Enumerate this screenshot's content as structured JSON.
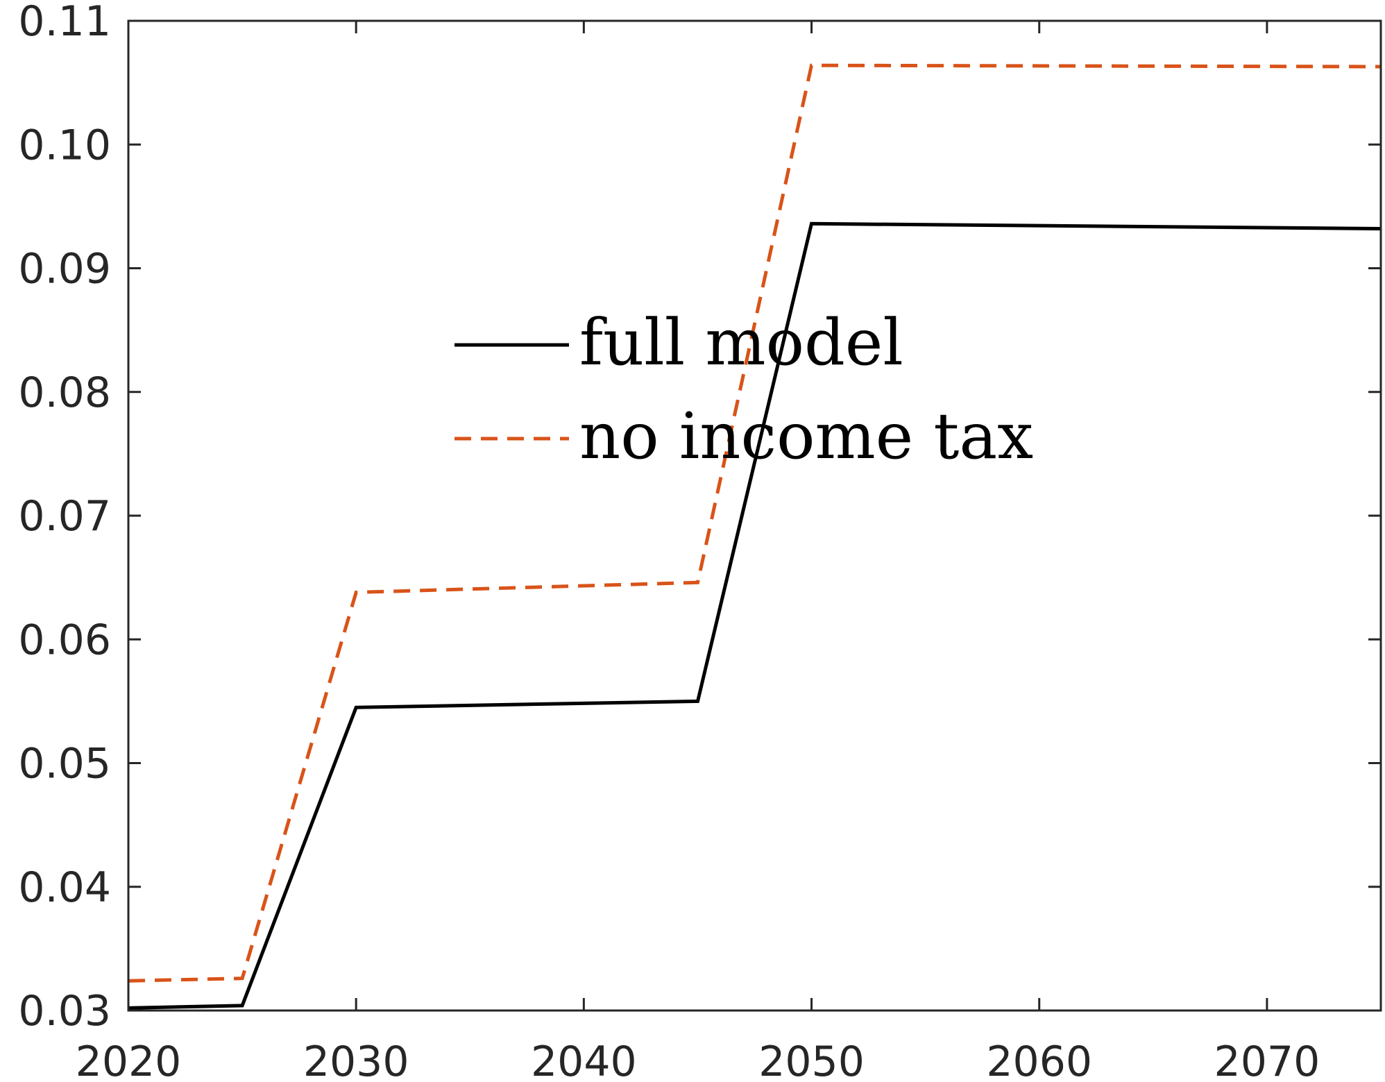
{
  "chart_data": {
    "type": "line",
    "title": "",
    "xlabel": "",
    "ylabel": "",
    "xlim": [
      2020,
      2075
    ],
    "ylim": [
      0.03,
      0.11
    ],
    "x_ticks": [
      2020,
      2030,
      2040,
      2050,
      2060,
      2070
    ],
    "x_tick_labels": [
      "2020",
      "2030",
      "2040",
      "2050",
      "2060",
      "2070"
    ],
    "y_ticks": [
      0.03,
      0.04,
      0.05,
      0.06,
      0.07,
      0.08,
      0.09,
      0.1,
      0.11
    ],
    "y_tick_labels": [
      "0.03",
      "0.04",
      "0.05",
      "0.06",
      "0.07",
      "0.08",
      "0.09",
      "0.10",
      "0.11"
    ],
    "grid": false,
    "legend_position": "center",
    "series": [
      {
        "name": "full model",
        "color": "#000000",
        "style": "solid",
        "x": [
          2020,
          2025,
          2030,
          2045,
          2050,
          2075
        ],
        "y": [
          0.0302,
          0.0304,
          0.0545,
          0.055,
          0.0936,
          0.0932
        ]
      },
      {
        "name": "no income tax",
        "color": "#D95319",
        "style": "dashed",
        "x": [
          2020,
          2025,
          2030,
          2045,
          2050,
          2075
        ],
        "y": [
          0.0324,
          0.0326,
          0.0638,
          0.0646,
          0.1064,
          0.1063
        ]
      }
    ]
  }
}
